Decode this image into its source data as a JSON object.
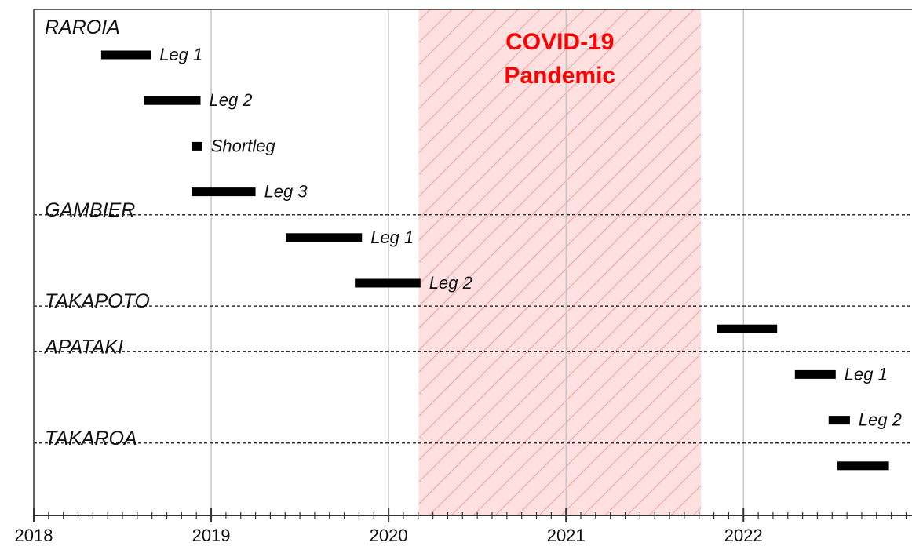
{
  "chart_data": {
    "type": "gantt",
    "title": "",
    "xlabel": "",
    "ylabel": "",
    "xlim": [
      2018.0,
      2022.95
    ],
    "x_ticks": [
      2018,
      2019,
      2020,
      2021,
      2022
    ],
    "x_tick_labels": [
      "2018",
      "2019",
      "2020",
      "2021",
      "2022"
    ],
    "x_minor_ticks_per_year": 12,
    "grid": "vertical lines at years",
    "shaded_period": {
      "label_lines": [
        "COVID-19",
        "Pandemic"
      ],
      "start": 2020.17,
      "end": 2021.76,
      "color": "#ffe0e0",
      "hatch_color": "#f4a7a7",
      "label_color": "#ff0000"
    },
    "groups": [
      {
        "name": "RAROIA",
        "tasks": [
          {
            "label": "Leg 1",
            "start": 2018.38,
            "end": 2018.66
          },
          {
            "label": "Leg 2",
            "start": 2018.62,
            "end": 2018.94
          },
          {
            "label": "Shortleg",
            "start": 2018.89,
            "end": 2018.95
          },
          {
            "label": "Leg 3",
            "start": 2018.89,
            "end": 2019.25
          }
        ]
      },
      {
        "name": "GAMBIER",
        "tasks": [
          {
            "label": "Leg 1",
            "start": 2019.42,
            "end": 2019.85
          },
          {
            "label": "Leg 2",
            "start": 2019.81,
            "end": 2020.18
          }
        ]
      },
      {
        "name": "TAKAPOTO",
        "tasks": [
          {
            "label": "",
            "start": 2021.85,
            "end": 2022.19
          }
        ]
      },
      {
        "name": "APATAKI",
        "tasks": [
          {
            "label": "Leg 1",
            "start": 2022.29,
            "end": 2022.52
          },
          {
            "label": "Leg 2",
            "start": 2022.48,
            "end": 2022.6
          }
        ]
      },
      {
        "name": "TAKAROA",
        "tasks": [
          {
            "label": "",
            "start": 2022.53,
            "end": 2022.82
          }
        ]
      }
    ],
    "colors": {
      "bar": "#000000",
      "grid": "#c8c8c8",
      "separator": "#333333",
      "axis": "#333333"
    }
  }
}
